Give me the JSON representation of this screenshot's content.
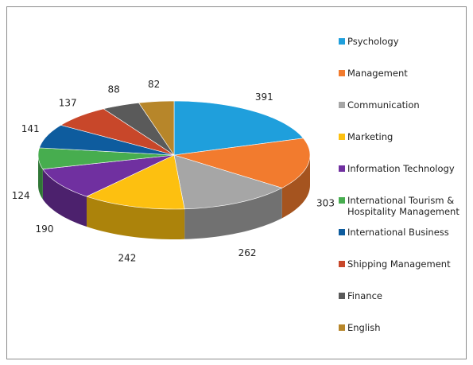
{
  "chart_data": {
    "type": "pie3d",
    "categories": [
      "Psychology",
      "Management",
      "Communication",
      "Marketing",
      "Information Technology",
      "International Tourism & Hospitality Management",
      "International Business",
      "Shipping Management",
      "Finance",
      "English"
    ],
    "values": [
      391,
      303,
      262,
      242,
      190,
      124,
      141,
      137,
      88,
      82
    ],
    "colors": [
      "#1f9fdc",
      "#f27b2e",
      "#a6a6a6",
      "#fdc010",
      "#7030a0",
      "#47ad4f",
      "#0e5c9e",
      "#c8472a",
      "#5a5a5a",
      "#b7862a"
    ],
    "legend": "right"
  }
}
